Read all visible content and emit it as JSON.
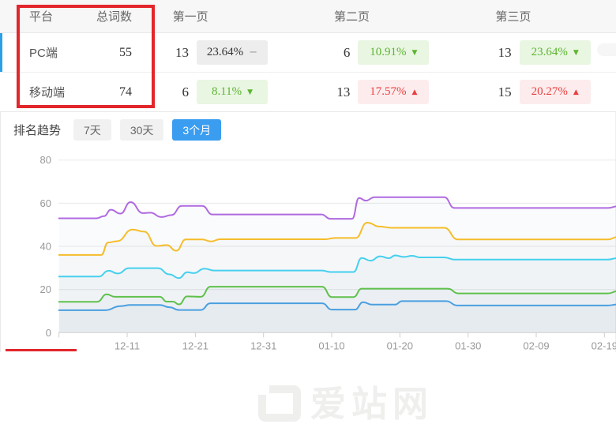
{
  "table": {
    "headers": [
      "平台",
      "总词数",
      "第一页",
      "第二页",
      "第三页"
    ],
    "rows": [
      {
        "platform": "PC端",
        "total": "55",
        "p1": {
          "count": "13",
          "pct": "23.64%",
          "arrow": "−",
          "dir": "flat"
        },
        "p2": {
          "count": "6",
          "pct": "10.91%",
          "arrow": "▼",
          "dir": "down"
        },
        "p3": {
          "count": "13",
          "pct": "23.64%",
          "arrow": "▼",
          "dir": "down"
        }
      },
      {
        "platform": "移动端",
        "total": "74",
        "p1": {
          "count": "6",
          "pct": "8.11%",
          "arrow": "▼",
          "dir": "down"
        },
        "p2": {
          "count": "13",
          "pct": "17.57%",
          "arrow": "▲",
          "dir": "up"
        },
        "p3": {
          "count": "15",
          "pct": "20.27%",
          "arrow": "▲",
          "dir": "up"
        }
      }
    ]
  },
  "trend": {
    "title": "排名趋势",
    "tabs": [
      {
        "label": "7天",
        "active": false
      },
      {
        "label": "30天",
        "active": false
      },
      {
        "label": "3个月",
        "active": true
      }
    ]
  },
  "watermark": {
    "text": "爱站网"
  },
  "colors": {
    "tab_active": "#3b9df0",
    "row_indicator": "#2ba0e8",
    "annotation_red": "#e2262c",
    "badge_up_text": "#e84040",
    "badge_down_text": "#5cb531"
  },
  "chart_data": {
    "type": "line",
    "title": "",
    "xlabel": "",
    "ylabel": "",
    "x_unit": "days since 12-01",
    "xlim": [
      0,
      82
    ],
    "ylim": [
      0,
      84
    ],
    "grid": true,
    "legend": "none",
    "y_ticks": [
      0,
      20,
      40,
      60,
      80
    ],
    "x_ticks": [
      {
        "d": 10,
        "label": "12-11"
      },
      {
        "d": 20,
        "label": "12-21"
      },
      {
        "d": 30,
        "label": "12-31"
      },
      {
        "d": 40,
        "label": "01-10"
      },
      {
        "d": 50,
        "label": "01-20"
      },
      {
        "d": 60,
        "label": "01-30"
      },
      {
        "d": 70,
        "label": "02-09"
      },
      {
        "d": 80,
        "label": "02-19"
      }
    ],
    "series": [
      {
        "name": "purple",
        "color": "#b06ae0",
        "points": [
          [
            0,
            53
          ],
          [
            5.5,
            53
          ],
          [
            6.6,
            54
          ],
          [
            7.6,
            57
          ],
          [
            9,
            55.2
          ],
          [
            10.5,
            60.5
          ],
          [
            12.3,
            55.4
          ],
          [
            13.4,
            55.6
          ],
          [
            15,
            53.6
          ],
          [
            16.5,
            54.5
          ],
          [
            18,
            58.8
          ],
          [
            21,
            58.8
          ],
          [
            22.5,
            54.8
          ],
          [
            38.5,
            54.8
          ],
          [
            39.8,
            52.8
          ],
          [
            43,
            52.8
          ],
          [
            44,
            62.4
          ],
          [
            45,
            61.2
          ],
          [
            46.3,
            62.8
          ],
          [
            56.5,
            62.8
          ],
          [
            58,
            57.8
          ],
          [
            80.5,
            57.8
          ],
          [
            82,
            58.6
          ]
        ]
      },
      {
        "name": "yellow",
        "color": "#f5bd2a",
        "points": [
          [
            0,
            36
          ],
          [
            6.2,
            36
          ],
          [
            7.2,
            41.8
          ],
          [
            8.5,
            42.4
          ],
          [
            10.8,
            47.8
          ],
          [
            12.5,
            46.8
          ],
          [
            14.3,
            40.2
          ],
          [
            15.8,
            40.6
          ],
          [
            17.2,
            38
          ],
          [
            18.6,
            43.2
          ],
          [
            21,
            43.2
          ],
          [
            22.3,
            42.3
          ],
          [
            23.6,
            43.3
          ],
          [
            39,
            43.3
          ],
          [
            40.5,
            43.9
          ],
          [
            43.5,
            43.9
          ],
          [
            45.2,
            51
          ],
          [
            47,
            49.2
          ],
          [
            48.8,
            48.6
          ],
          [
            56.5,
            48.6
          ],
          [
            58.5,
            43.2
          ],
          [
            80.5,
            43.2
          ],
          [
            82,
            44.4
          ]
        ]
      },
      {
        "name": "cyan",
        "color": "#45d0ee",
        "points": [
          [
            0,
            26
          ],
          [
            5.8,
            26
          ],
          [
            7.3,
            28.7
          ],
          [
            8.6,
            27.4
          ],
          [
            10.3,
            29.9
          ],
          [
            14.5,
            29.9
          ],
          [
            16.2,
            27
          ],
          [
            17.6,
            25.3
          ],
          [
            18.8,
            28
          ],
          [
            19.8,
            27.6
          ],
          [
            21.3,
            29.7
          ],
          [
            22.8,
            28.8
          ],
          [
            38.6,
            28.8
          ],
          [
            39.8,
            28.1
          ],
          [
            43.2,
            28.1
          ],
          [
            44.4,
            34.6
          ],
          [
            45.7,
            33.4
          ],
          [
            47.1,
            35.4
          ],
          [
            48.4,
            34.5
          ],
          [
            49.3,
            35.8
          ],
          [
            50.6,
            35.1
          ],
          [
            51.8,
            35.6
          ],
          [
            53,
            34.9
          ],
          [
            56.5,
            34.9
          ],
          [
            58,
            33.9
          ],
          [
            80.5,
            33.9
          ],
          [
            82,
            34.6
          ]
        ]
      },
      {
        "name": "green",
        "color": "#5fc14c",
        "points": [
          [
            0,
            14.3
          ],
          [
            5.6,
            14.3
          ],
          [
            7,
            17.8
          ],
          [
            8.2,
            16.6
          ],
          [
            14.8,
            16.6
          ],
          [
            15.8,
            14.4
          ],
          [
            16.7,
            14.4
          ],
          [
            17.6,
            13.1
          ],
          [
            18.8,
            16.8
          ],
          [
            20.8,
            16.6
          ],
          [
            22.2,
            21.3
          ],
          [
            38.6,
            21.3
          ],
          [
            40,
            16.5
          ],
          [
            43.2,
            16.5
          ],
          [
            44.4,
            20.4
          ],
          [
            57,
            20.4
          ],
          [
            58.6,
            18.2
          ],
          [
            80.5,
            18.2
          ],
          [
            82,
            19.3
          ]
        ]
      },
      {
        "name": "blue",
        "color": "#4a9fe0",
        "points": [
          [
            0,
            10.4
          ],
          [
            6.8,
            10.4
          ],
          [
            9,
            12.3
          ],
          [
            10.5,
            12.8
          ],
          [
            14.8,
            12.8
          ],
          [
            16.2,
            11.8
          ],
          [
            17.6,
            10.5
          ],
          [
            20.8,
            10.5
          ],
          [
            22.2,
            13.6
          ],
          [
            38.6,
            13.6
          ],
          [
            40,
            10.7
          ],
          [
            43.4,
            10.7
          ],
          [
            44.6,
            14.1
          ],
          [
            45.9,
            13
          ],
          [
            49.3,
            13
          ],
          [
            50.3,
            14.6
          ],
          [
            56.8,
            14.6
          ],
          [
            58.4,
            12.6
          ],
          [
            80.5,
            12.6
          ],
          [
            82,
            13.1
          ]
        ]
      }
    ]
  }
}
